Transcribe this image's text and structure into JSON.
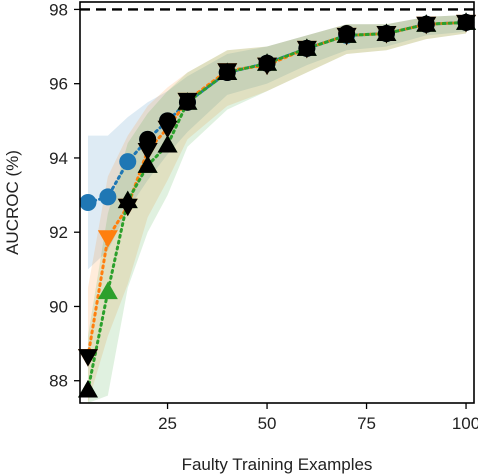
{
  "chart_data": {
    "type": "line",
    "xlabel": "Faulty Training Examples",
    "ylabel": "AUCROC (%)",
    "xlim": [
      3,
      102
    ],
    "ylim": [
      87.4,
      98.2
    ],
    "xticks": [
      25,
      50,
      75,
      100
    ],
    "yticks": [
      88,
      90,
      92,
      94,
      96,
      98
    ],
    "grid": false,
    "legend": "none",
    "reference_line": {
      "y": 98.0,
      "color": "#000000",
      "style": "dashed"
    },
    "series": [
      {
        "color": "#1f77b4",
        "marker": "circle",
        "x": [
          5,
          10,
          15,
          20,
          25,
          30,
          40,
          50,
          60,
          70,
          80,
          90,
          100
        ],
        "y": [
          92.8,
          92.95,
          93.9,
          94.5,
          95.0,
          95.5,
          96.3,
          96.55,
          96.95,
          97.3,
          97.35,
          97.6,
          97.65
        ],
        "band_low": [
          91.0,
          91.5,
          92.6,
          93.4,
          94.1,
          94.7,
          95.7,
          96.0,
          96.5,
          96.9,
          97.0,
          97.3,
          97.4
        ],
        "band_high": [
          94.6,
          94.6,
          95.1,
          95.5,
          95.8,
          96.2,
          96.8,
          97.0,
          97.3,
          97.6,
          97.6,
          97.8,
          97.85
        ]
      },
      {
        "color": "#ff7f0e",
        "marker": "triangle-down",
        "x": [
          5,
          10,
          15,
          20,
          25,
          30,
          40,
          50,
          60,
          70,
          80,
          90,
          100
        ],
        "y": [
          88.65,
          91.85,
          92.7,
          94.2,
          94.8,
          95.55,
          96.35,
          96.5,
          96.95,
          97.3,
          97.35,
          97.6,
          97.65
        ],
        "band_low": [
          87.4,
          89.2,
          90.6,
          92.4,
          93.4,
          94.5,
          95.4,
          95.8,
          96.3,
          96.8,
          96.9,
          97.2,
          97.35
        ],
        "band_high": [
          90.5,
          93.5,
          94.6,
          95.4,
          95.9,
          96.3,
          96.9,
          97.0,
          97.3,
          97.6,
          97.6,
          97.8,
          97.85
        ]
      },
      {
        "color": "#2ca02c",
        "marker": "triangle-up",
        "x": [
          5,
          10,
          15,
          20,
          25,
          30,
          40,
          50,
          60,
          70,
          80,
          90,
          100
        ],
        "y": [
          87.75,
          90.4,
          92.85,
          93.8,
          94.35,
          95.5,
          96.3,
          96.55,
          96.95,
          97.3,
          97.35,
          97.6,
          97.65
        ],
        "band_low": [
          87.4,
          87.6,
          90.5,
          92.0,
          93.0,
          94.3,
          95.3,
          95.8,
          96.3,
          96.8,
          96.9,
          97.2,
          97.35
        ],
        "band_high": [
          89.2,
          92.5,
          94.4,
          95.2,
          95.8,
          96.3,
          96.9,
          97.0,
          97.3,
          97.6,
          97.6,
          97.8,
          97.85
        ]
      }
    ],
    "overlay_series": [
      {
        "color": "#000000",
        "marker": "circle",
        "x": [
          20,
          25,
          30,
          40,
          50,
          60,
          70,
          80,
          90,
          100
        ],
        "y": [
          94.5,
          95.0,
          95.5,
          96.3,
          96.55,
          96.95,
          97.35,
          97.35,
          97.6,
          97.65
        ]
      },
      {
        "color": "#000000",
        "marker": "triangle-down",
        "x": [
          5,
          15,
          20,
          25,
          30,
          40,
          50,
          60,
          70,
          80,
          90,
          100
        ],
        "y": [
          88.65,
          92.7,
          94.2,
          94.8,
          95.55,
          96.35,
          96.5,
          96.95,
          97.3,
          97.35,
          97.6,
          97.65
        ]
      },
      {
        "color": "#000000",
        "marker": "triangle-up",
        "x": [
          5,
          15,
          20,
          25,
          30,
          40,
          50,
          60,
          70,
          80,
          90,
          100
        ],
        "y": [
          87.75,
          92.85,
          93.8,
          94.35,
          95.5,
          96.3,
          96.55,
          96.95,
          97.3,
          97.35,
          97.6,
          97.65
        ]
      }
    ]
  }
}
